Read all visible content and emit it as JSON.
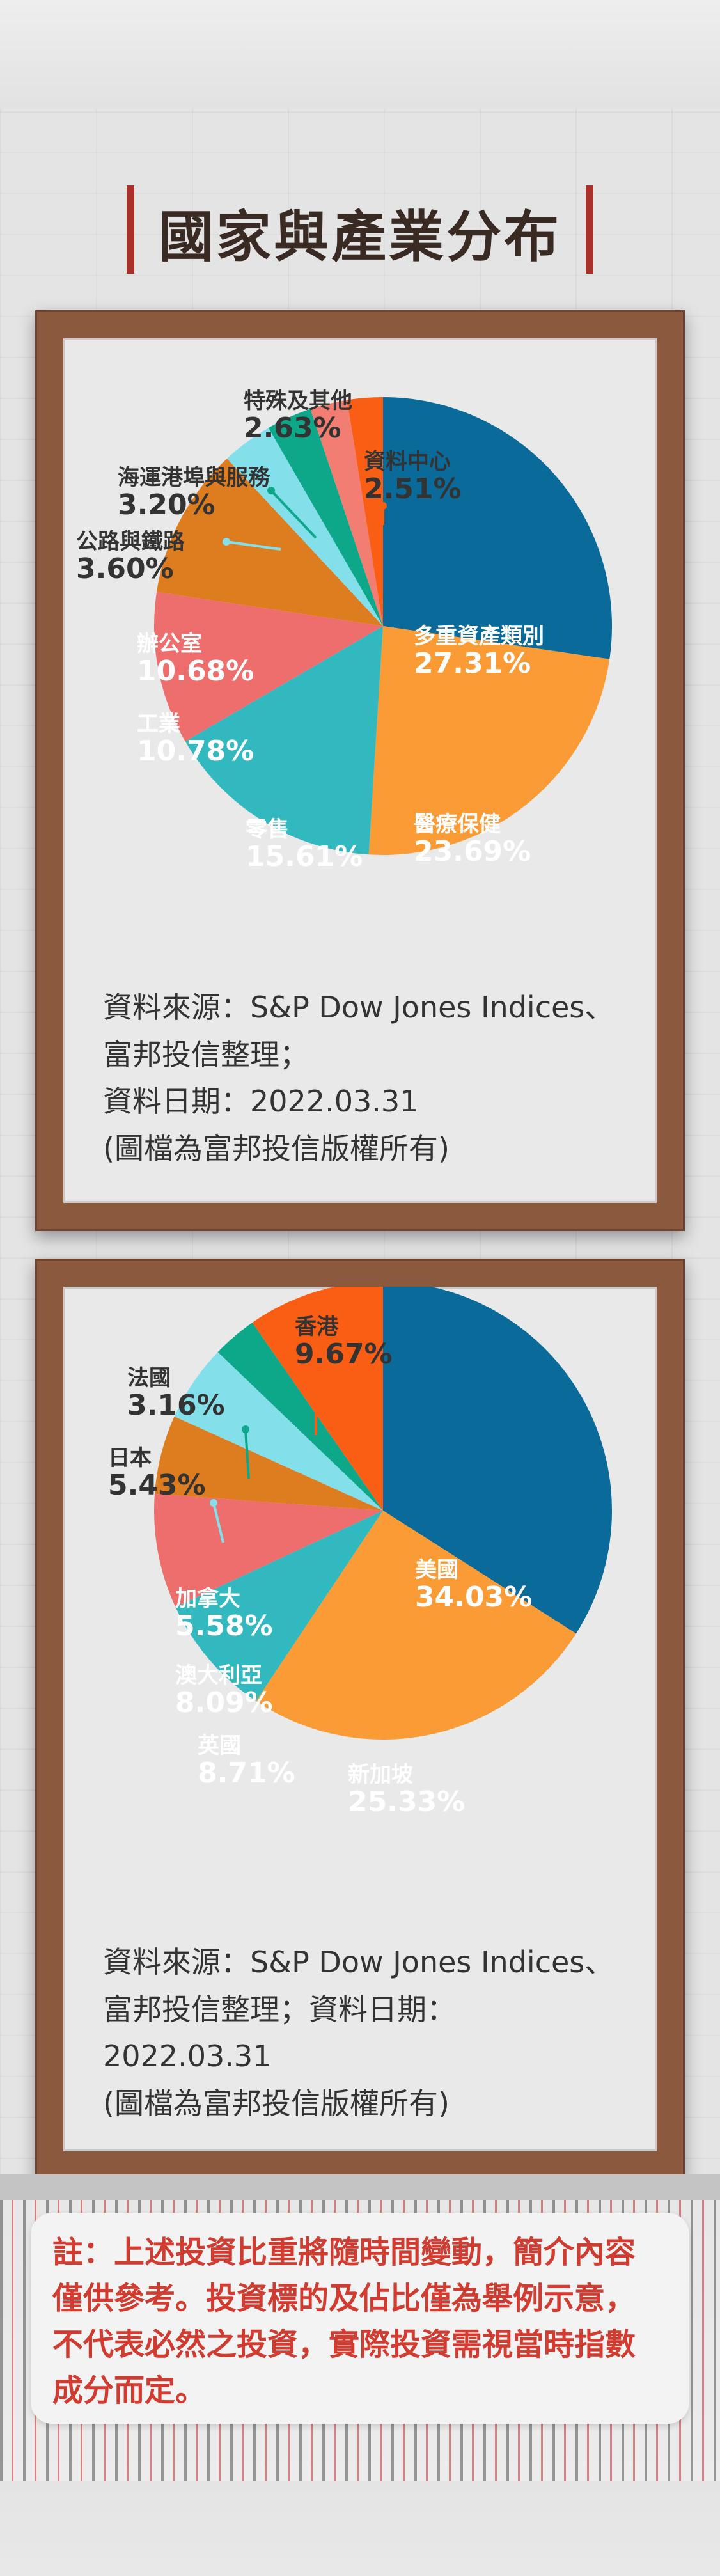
{
  "title": "國家與產業分布",
  "chart_data": [
    {
      "type": "pie",
      "categories": [
        "多重資產類別",
        "醫療保健",
        "零售",
        "工業",
        "辦公室",
        "公路與鐵路",
        "海運港埠與服務",
        "特殊及其他",
        "資料中心"
      ],
      "values": [
        27.31,
        23.69,
        15.61,
        10.78,
        10.68,
        3.6,
        3.2,
        2.63,
        2.51
      ],
      "value_labels": [
        "27.31%",
        "23.69%",
        "15.61%",
        "10.78%",
        "10.68%",
        "3.60%",
        "3.20%",
        "2.63%",
        "2.51%"
      ],
      "colors": [
        "#0a6a99",
        "#fa9b35",
        "#32b9bf",
        "#ee6e6e",
        "#de7d1f",
        "#83dfe9",
        "#0da78a",
        "#f27d73",
        "#fa5e14"
      ],
      "source": [
        "資料來源：S&P Dow Jones Indices、",
        "富邦投信整理；",
        "資料日期：2022.03.31",
        "(圖檔為富邦投信版權所有)"
      ]
    },
    {
      "type": "pie",
      "categories": [
        "美國",
        "新加坡",
        "英國",
        "澳大利亞",
        "加拿大",
        "日本",
        "法國",
        "香港"
      ],
      "values": [
        34.03,
        25.33,
        8.71,
        8.09,
        5.58,
        5.43,
        3.16,
        9.67
      ],
      "value_labels": [
        "34.03%",
        "25.33%",
        "8.71%",
        "8.09%",
        "5.58%",
        "5.43%",
        "3.16%",
        "9.67%"
      ],
      "colors": [
        "#0a6a99",
        "#fa9b35",
        "#32b9bf",
        "#ee6e6e",
        "#de7d1f",
        "#83dfe9",
        "#0da78a",
        "#fa5e14"
      ],
      "source": [
        "資料來源：S&P Dow Jones Indices、",
        "富邦投信整理；資料日期：",
        "2022.03.31",
        "(圖檔為富邦投信版權所有)"
      ]
    }
  ],
  "note": [
    "註：上述投資比重將隨時間變動，簡介內容",
    "僅供參考。投資標的及佔比僅為舉例示意，",
    "不代表必然之投資，實際投資需視當時指數",
    "成分而定。"
  ]
}
